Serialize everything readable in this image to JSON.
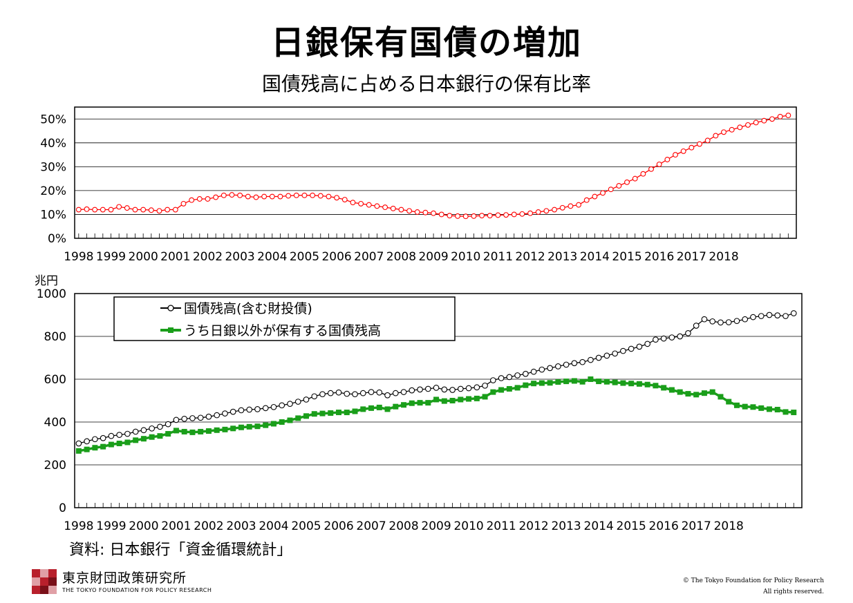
{
  "header": {
    "title": "日銀保有国債の増加",
    "subtitle": "国債残高に占める日本銀行の保有比率"
  },
  "footer": {
    "source": "資料: 日本銀行「資金循環統計」",
    "org_name": "東京財団政策研究所",
    "org_name_en": "THE TOKYO FOUNDATION FOR POLICY RESEARCH",
    "copyright": "© The Tokyo Foundation for Policy Research",
    "rights": "All rights reserved."
  },
  "colors": {
    "ratio_line": "#ff0000",
    "total_line": "#000000",
    "non_boj_line": "#1a9e1a"
  },
  "chart_data": [
    {
      "type": "line",
      "years": [
        "1998",
        "1999",
        "2000",
        "2001",
        "2002",
        "2003",
        "2004",
        "2005",
        "2006",
        "2007",
        "2008",
        "2009",
        "2010",
        "2011",
        "2012",
        "2013",
        "2014",
        "2015",
        "2016",
        "2017",
        "2018"
      ],
      "y_unit": "%",
      "ylim": [
        0,
        55
      ],
      "yticks": [
        "0%",
        "10%",
        "20%",
        "30%",
        "40%",
        "50%"
      ],
      "ytick_values": [
        0,
        10,
        20,
        30,
        40,
        50
      ],
      "grid": true,
      "series": [
        {
          "values": [
            12,
            12.2,
            12,
            12,
            12,
            13.2,
            12.7,
            12,
            12,
            11.8,
            11.5,
            12,
            12,
            14.5,
            16,
            16.5,
            16.5,
            17.2,
            18,
            18.2,
            18,
            17.5,
            17.2,
            17.5,
            17.5,
            17.5,
            17.8,
            18,
            18,
            18,
            17.8,
            17.5,
            17,
            16.2,
            15,
            14.5,
            14,
            13.5,
            13,
            12.5,
            12,
            11.5,
            11,
            10.8,
            10.5,
            10,
            9.5,
            9.3,
            9.2,
            9.3,
            9.5,
            9.5,
            9.7,
            9.8,
            10,
            10.2,
            10.5,
            11,
            11.5,
            12,
            12.8,
            13.5,
            14,
            16,
            17.5,
            19,
            20.5,
            22,
            23.5,
            25,
            27,
            29,
            31,
            33,
            35,
            36.5,
            38,
            39.5,
            41,
            43,
            44.5,
            45.5,
            46.5,
            47.5,
            48.5,
            49.3,
            50,
            51,
            51.5
          ]
        }
      ]
    },
    {
      "type": "line",
      "y_unit_label": "兆円",
      "years": [
        "1998",
        "1999",
        "2000",
        "2001",
        "2002",
        "2003",
        "2004",
        "2005",
        "2006",
        "2007",
        "2008",
        "2009",
        "2010",
        "2011",
        "2012",
        "2013",
        "2014",
        "2015",
        "2016",
        "2017",
        "2018"
      ],
      "ylim": [
        0,
        1000
      ],
      "yticks": [
        "0",
        "200",
        "400",
        "600",
        "800",
        "1000"
      ],
      "ytick_values": [
        0,
        200,
        400,
        600,
        800,
        1000
      ],
      "grid": true,
      "legend_position": "top-left",
      "series": [
        {
          "name": "国債残高(含む財投債)",
          "marker": "circle",
          "values": [
            300,
            310,
            320,
            325,
            335,
            340,
            345,
            355,
            362,
            370,
            378,
            390,
            410,
            415,
            418,
            420,
            425,
            432,
            440,
            448,
            455,
            458,
            460,
            465,
            470,
            478,
            485,
            495,
            505,
            520,
            530,
            535,
            538,
            532,
            530,
            535,
            540,
            538,
            525,
            535,
            540,
            548,
            552,
            555,
            560,
            552,
            550,
            555,
            558,
            562,
            570,
            595,
            605,
            610,
            618,
            625,
            635,
            645,
            652,
            660,
            668,
            675,
            680,
            690,
            700,
            710,
            720,
            732,
            742,
            752,
            765,
            785,
            790,
            795,
            800,
            815,
            850,
            880,
            870,
            865,
            866,
            872,
            880,
            890,
            895,
            900,
            898,
            895,
            908
          ]
        },
        {
          "name": "うち日銀以外が保有する国債残高",
          "marker": "square",
          "values": [
            265,
            272,
            280,
            285,
            295,
            300,
            305,
            315,
            322,
            330,
            335,
            345,
            360,
            355,
            352,
            355,
            358,
            362,
            365,
            370,
            375,
            378,
            380,
            385,
            392,
            400,
            408,
            418,
            428,
            438,
            440,
            442,
            445,
            445,
            450,
            460,
            465,
            468,
            460,
            472,
            480,
            488,
            490,
            490,
            505,
            498,
            500,
            505,
            508,
            510,
            518,
            540,
            550,
            555,
            560,
            572,
            580,
            582,
            583,
            587,
            590,
            592,
            588,
            600,
            590,
            588,
            585,
            582,
            580,
            578,
            575,
            570,
            560,
            550,
            540,
            532,
            528,
            535,
            540,
            518,
            495,
            478,
            472,
            470,
            465,
            460,
            458,
            447,
            445
          ]
        }
      ]
    }
  ]
}
